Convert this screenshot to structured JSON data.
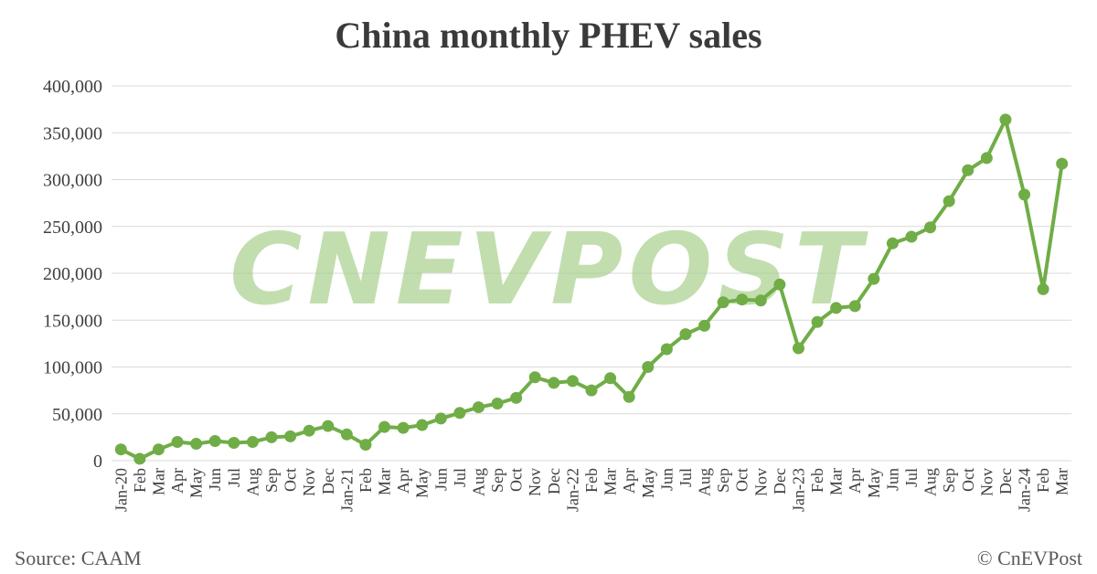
{
  "chart_data": {
    "type": "line",
    "title": "China monthly PHEV sales",
    "xlabel": "",
    "ylabel": "",
    "ylim": [
      0,
      400000
    ],
    "yticks": [
      "0",
      "50,000",
      "100,000",
      "150,000",
      "200,000",
      "250,000",
      "300,000",
      "350,000",
      "400,000"
    ],
    "grid": true,
    "categories": [
      "Jan-20",
      "Feb",
      "Mar",
      "Apr",
      "May",
      "Jun",
      "Jul",
      "Aug",
      "Sep",
      "Oct",
      "Nov",
      "Dec",
      "Jan-21",
      "Feb",
      "Mar",
      "Apr",
      "May",
      "Jun",
      "Jul",
      "Aug",
      "Sep",
      "Oct",
      "Nov",
      "Dec",
      "Jan-22",
      "Feb",
      "Mar",
      "Apr",
      "May",
      "Jun",
      "Jul",
      "Aug",
      "Sep",
      "Oct",
      "Nov",
      "Dec",
      "Jan-23",
      "Feb",
      "Mar",
      "Apr",
      "May",
      "Jun",
      "Jul",
      "Aug",
      "Sep",
      "Oct",
      "Nov",
      "Dec",
      "Jan-24",
      "Feb",
      "Mar"
    ],
    "values": [
      12000,
      2000,
      12000,
      20000,
      18000,
      21000,
      19000,
      20000,
      25000,
      26000,
      32000,
      37000,
      28000,
      17000,
      36000,
      35000,
      38000,
      45000,
      51000,
      57000,
      61000,
      67000,
      89000,
      83000,
      85000,
      75000,
      88000,
      68000,
      100000,
      119000,
      135000,
      144000,
      169000,
      172000,
      171000,
      188000,
      120000,
      148000,
      163000,
      165000,
      194000,
      232000,
      239000,
      249000,
      277000,
      310000,
      323000,
      364000,
      284000,
      183000,
      317000
    ],
    "colors": {
      "line": "#70ad47",
      "watermark": "#a9d18e"
    }
  },
  "watermark": "CNEVPOST",
  "source": "Source: CAAM",
  "copyright": "© CnEVPost"
}
